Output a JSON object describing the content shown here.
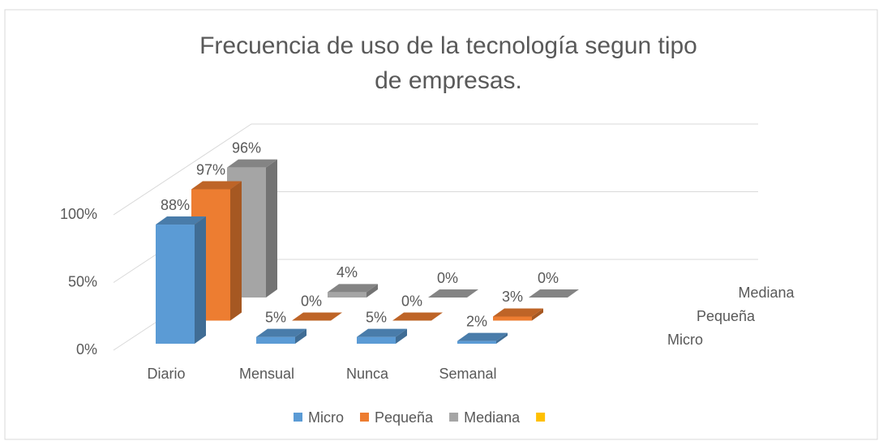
{
  "chart_data": {
    "type": "bar3d",
    "title": "Frecuencia de uso de la tecnología segun tipo de empresas.",
    "categories": [
      "Diario",
      "Mensual",
      "Nunca",
      "Semanal"
    ],
    "series": [
      {
        "name": "Micro",
        "color": "#5b9bd5",
        "values": [
          88,
          5,
          5,
          2
        ],
        "value_labels": [
          "88%",
          "5%",
          "5%",
          "2%"
        ]
      },
      {
        "name": "Pequeña",
        "color": "#ed7d31",
        "values": [
          97,
          0,
          0,
          3
        ],
        "value_labels": [
          "97%",
          "0%",
          "0%",
          "3%"
        ]
      },
      {
        "name": "Mediana",
        "color": "#a5a5a5",
        "values": [
          96,
          4,
          0,
          0
        ],
        "value_labels": [
          "96%",
          "4%",
          "0%",
          "0%"
        ]
      },
      {
        "color": "#ffc000",
        "values": [
          null,
          null,
          null,
          null
        ]
      }
    ],
    "ylim": [
      0,
      100
    ],
    "yticks": [
      {
        "value": 0,
        "label": "0%"
      },
      {
        "value": 50,
        "label": "50%"
      },
      {
        "value": 100,
        "label": "100%"
      }
    ],
    "grid": true,
    "legend": "bottom"
  }
}
